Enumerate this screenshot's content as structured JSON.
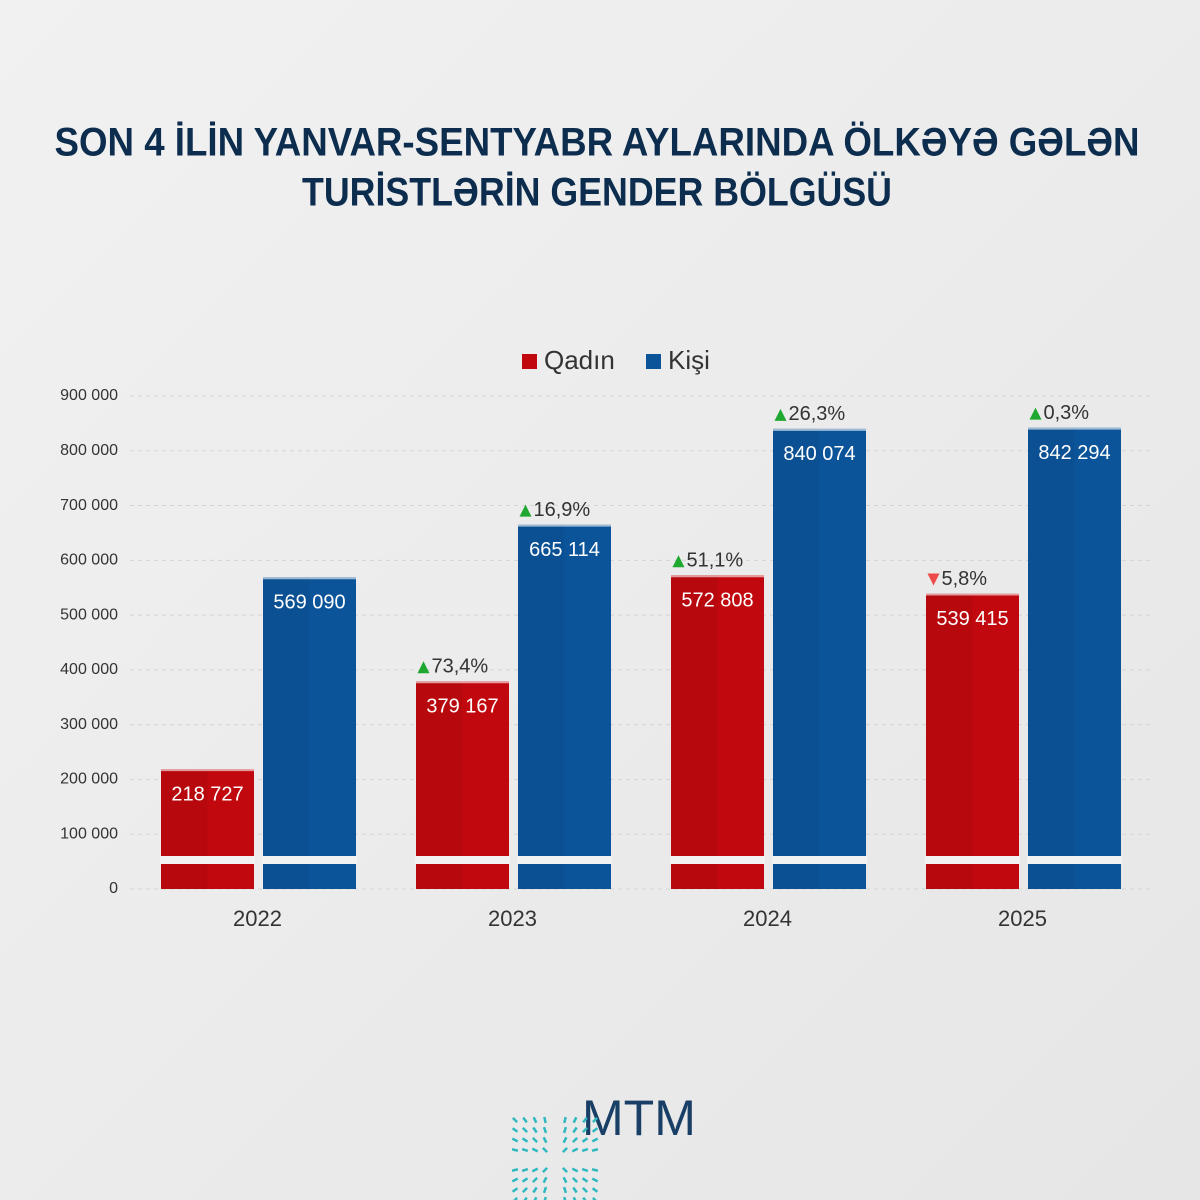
{
  "chart_data": {
    "type": "bar",
    "title": [
      "SON 4 İLİN YANVAR-SENTYABR AYLARINDA ÖLKƏYƏ GƏLƏN",
      "TURİSTLƏRİN GENDER BÖLGÜSÜ"
    ],
    "categories": [
      "2022",
      "2023",
      "2024",
      "2025"
    ],
    "series": [
      {
        "name": "Qadın",
        "color": "#c0080e",
        "values": [
          218727,
          379167,
          572808,
          539415
        ],
        "value_labels": [
          "218 727",
          "379 167",
          "572 808",
          "539 415"
        ],
        "changes": [
          null,
          73.4,
          51.1,
          -5.8
        ],
        "change_labels": [
          null,
          "73,4%",
          "51,1%",
          "5,8%"
        ]
      },
      {
        "name": "Kişi",
        "color": "#0b5499",
        "values": [
          569090,
          665114,
          840074,
          842294
        ],
        "value_labels": [
          "569 090",
          "665 114",
          "840 074",
          "842 294"
        ],
        "changes": [
          null,
          16.9,
          26.3,
          0.3
        ],
        "change_labels": [
          null,
          "16,9%",
          "26,3%",
          "0,3%"
        ]
      }
    ],
    "ylim": [
      0,
      900000
    ],
    "yticks": [
      0,
      {
        "value": 100000,
        "label": "100 000"
      },
      {
        "value": 200000,
        "label": "200 000"
      },
      {
        "value": 300000,
        "label": "300 000"
      },
      {
        "value": 400000,
        "label": "400 000"
      },
      {
        "value": 500000,
        "label": "500 000"
      },
      {
        "value": 600000,
        "label": "600 000"
      },
      {
        "value": 700000,
        "label": "700 000"
      },
      {
        "value": 800000,
        "label": "800 000"
      },
      {
        "value": 900000,
        "label": "900 000"
      }
    ],
    "grid": true,
    "legend": "top"
  },
  "logo": "MTM"
}
